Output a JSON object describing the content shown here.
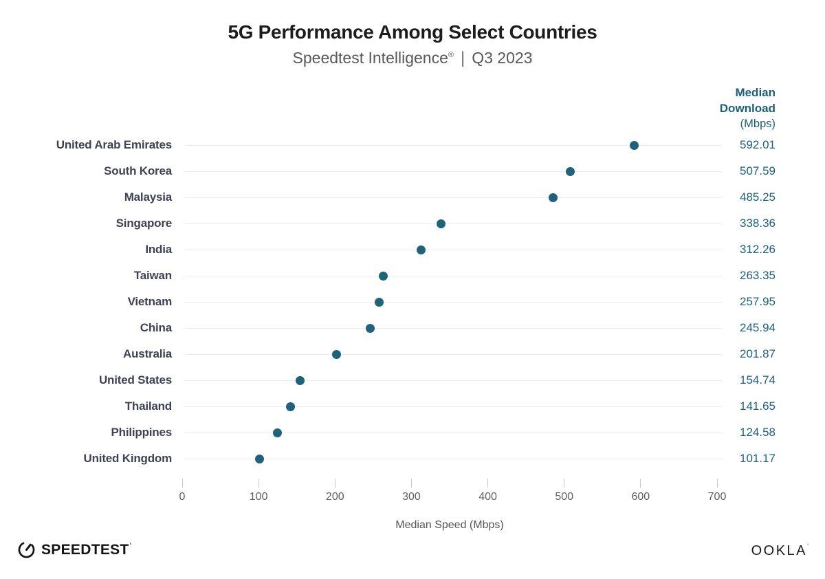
{
  "header": {
    "title": "5G Performance Among Select Countries",
    "subtitle_brand": "Speedtest Intelligence",
    "subtitle_reg": "®",
    "subtitle_sep": "|",
    "subtitle_period": "Q3 2023"
  },
  "value_column": {
    "header_line1": "Median",
    "header_line2": "Download",
    "header_line3": "(Mbps)"
  },
  "chart_data": {
    "type": "scatter",
    "subtype": "horizontal-dot-plot",
    "title": "5G Performance Among Select Countries",
    "subtitle": "Speedtest Intelligence® | Q3 2023",
    "categories": [
      "United Arab Emirates",
      "South Korea",
      "Malaysia",
      "Singapore",
      "India",
      "Taiwan",
      "Vietnam",
      "China",
      "Australia",
      "United States",
      "Thailand",
      "Philippines",
      "United Kingdom"
    ],
    "values": [
      592.01,
      507.59,
      485.25,
      338.36,
      312.26,
      263.35,
      257.95,
      245.94,
      201.87,
      154.74,
      141.65,
      124.58,
      101.17
    ],
    "value_labels": [
      "592.01",
      "507.59",
      "485.25",
      "338.36",
      "312.26",
      "263.35",
      "257.95",
      "245.94",
      "201.87",
      "154.74",
      "141.65",
      "124.58",
      "101.17"
    ],
    "xlabel": "Median Speed (Mbps)",
    "xlim": [
      0,
      700
    ],
    "xticks": [
      0,
      100,
      200,
      300,
      400,
      500,
      600,
      700
    ],
    "grid": "light horizontal row lines only",
    "legend": "none",
    "colors": {
      "dot": "#1e6379",
      "value_text": "#1c6180",
      "header_text": "#1b5f7e",
      "category_text": "#3f4254",
      "row_line": "#ededed"
    }
  },
  "footer": {
    "speedtest_label": "SPEEDTEST",
    "speedtest_mark": "’",
    "ookla_label": "OOKLA",
    "ookla_mark": "’"
  }
}
